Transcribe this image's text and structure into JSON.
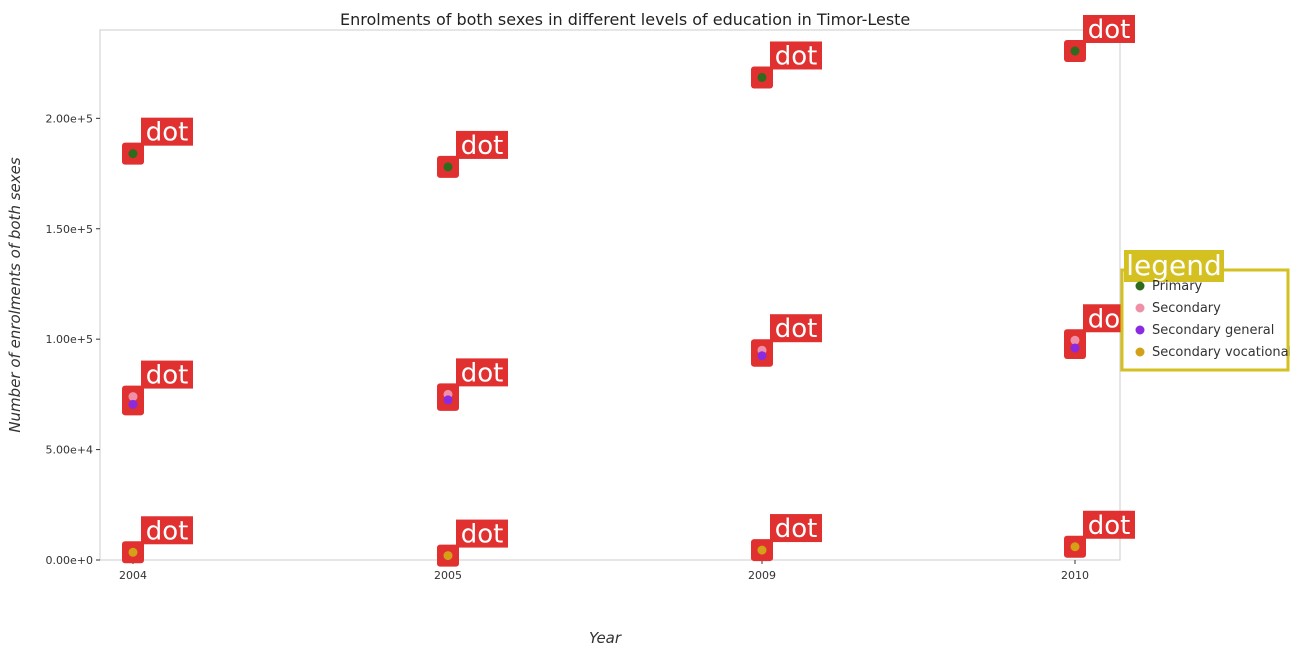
{
  "chart_data": {
    "type": "scatter",
    "title": "Enrolments of both sexes in different levels of education in Timor-Leste",
    "xlabel": "Year",
    "ylabel": "Number of enrolments of both sexes",
    "categories": [
      "2004",
      "2005",
      "2009",
      "2010"
    ],
    "ylim": [
      0,
      240000
    ],
    "yticks": [
      0,
      50000,
      100000,
      150000,
      200000
    ],
    "ytick_labels": [
      "0.00e+0",
      "5.00e+4",
      "1.00e+5",
      "1.50e+5",
      "2.00e+5"
    ],
    "grid": false,
    "legend_position": "right",
    "legend_title": "legend",
    "badge_text": "dot",
    "series": [
      {
        "name": "Primary",
        "color": "#2e6b1e",
        "values": [
          184000,
          178000,
          218500,
          230500
        ]
      },
      {
        "name": "Secondary",
        "color": "#f08fa8",
        "values": [
          74000,
          75000,
          95000,
          99500
        ]
      },
      {
        "name": "Secondary general",
        "color": "#8a2be2",
        "values": [
          70500,
          72500,
          92500,
          96000
        ]
      },
      {
        "name": "Secondary vocational",
        "color": "#d4a017",
        "values": [
          3500,
          2000,
          4500,
          6000
        ]
      }
    ]
  }
}
